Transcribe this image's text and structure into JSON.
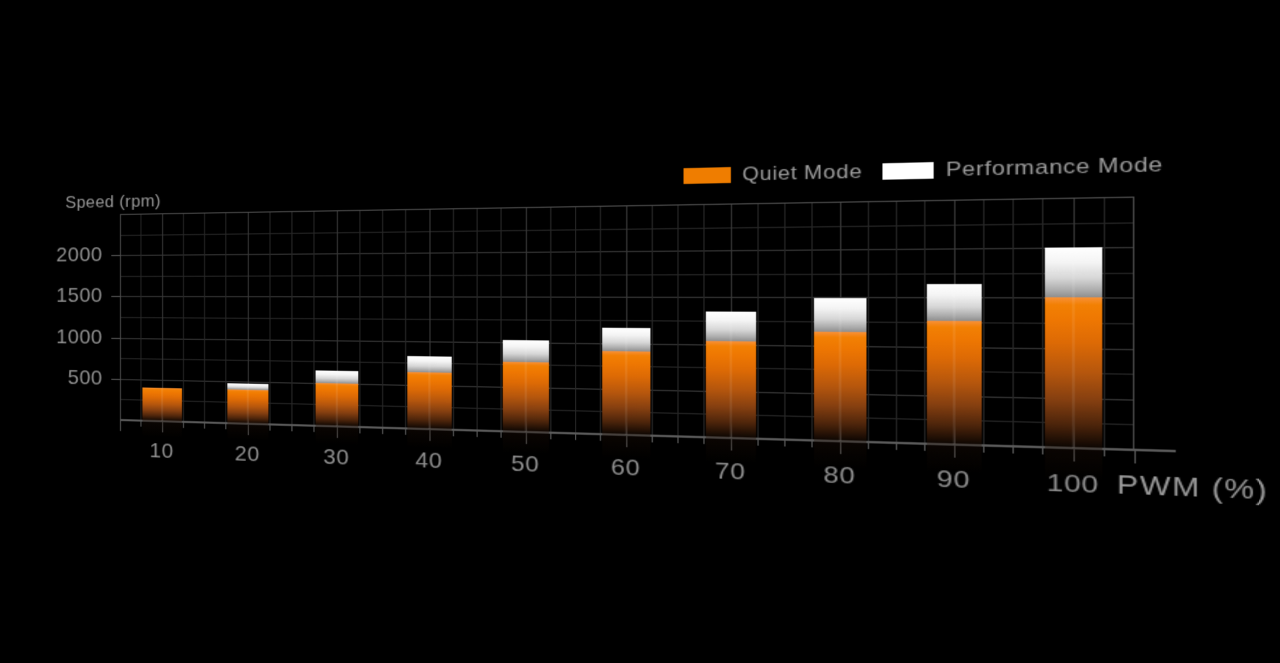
{
  "chart_data": {
    "type": "bar",
    "ylabel": "Speed (rpm)",
    "xlabel": "PWM (%)",
    "categories": [
      10,
      20,
      30,
      40,
      50,
      60,
      70,
      80,
      90,
      100
    ],
    "series": [
      {
        "name": "Quiet Mode",
        "color": "#EF7D00",
        "values": [
          400,
          400,
          500,
          640,
          780,
          910,
          1030,
          1140,
          1260,
          1500
        ]
      },
      {
        "name": "Performance Mode",
        "color": "#FFFFFF",
        "values": [
          400,
          470,
          640,
          820,
          1020,
          1170,
          1350,
          1490,
          1640,
          2000
        ]
      }
    ],
    "ylim": [
      0,
      2500
    ],
    "yticks": [
      500,
      1000,
      1500,
      2000
    ],
    "xlim_percent": [
      5,
      105
    ],
    "grid": "minor lines every 250 rpm and 2.5 PWM%, major lines every 500 rpm and 10 PWM%",
    "legend_position": "top-right",
    "bar_style": "white Performance segment stacked above orange Quiet segment; bars fade to black toward the baseline; chart tilted in perspective, larger toward the right",
    "background": "#000000",
    "axis_label_color": "#8F8F8F"
  }
}
